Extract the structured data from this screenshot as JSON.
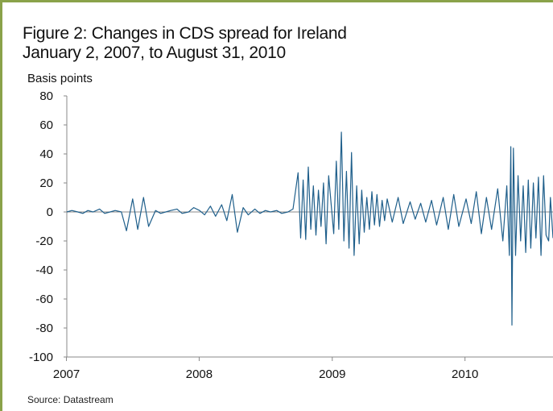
{
  "chart_data": {
    "type": "line",
    "title": "Figure 2: Changes in CDS spread for Ireland",
    "subtitle": "January 2, 2007, to August 31, 2010",
    "ylabel": "Basis points",
    "xlabel": "",
    "source": "Source: Datastream",
    "ylim": [
      -100,
      80
    ],
    "y_ticks": [
      "80",
      "60",
      "40",
      "20",
      "0",
      "-20",
      "-40",
      "-60",
      "-80",
      "-100"
    ],
    "x_ticks": [
      "2007",
      "2008",
      "2009",
      "2010"
    ],
    "x_range": [
      "2007-01-02",
      "2010-08-31"
    ],
    "grid": false,
    "legend": "none",
    "line_color": "#1f5f8b",
    "series": [
      {
        "x": [
          "2007-01-02",
          "2007-01-16",
          "2007-02-01",
          "2007-02-15",
          "2007-03-01",
          "2007-03-15",
          "2007-04-02",
          "2007-04-16",
          "2007-05-01",
          "2007-05-15",
          "2007-06-01",
          "2007-06-15",
          "2007-07-02",
          "2007-07-16",
          "2007-08-01",
          "2007-08-15",
          "2007-09-03",
          "2007-09-17",
          "2007-10-01",
          "2007-10-15",
          "2007-11-01",
          "2007-11-15",
          "2007-12-03",
          "2007-12-17",
          "2008-01-02",
          "2008-01-16",
          "2008-02-01",
          "2008-02-15",
          "2008-03-03",
          "2008-03-17",
          "2008-04-01",
          "2008-04-15",
          "2008-05-01",
          "2008-05-15",
          "2008-06-02",
          "2008-06-16",
          "2008-07-01",
          "2008-07-15",
          "2008-08-01",
          "2008-08-15",
          "2008-09-01",
          "2008-09-15",
          "2008-09-29",
          "2008-10-06",
          "2008-10-13",
          "2008-10-20",
          "2008-10-27",
          "2008-11-03",
          "2008-11-10",
          "2008-11-17",
          "2008-11-24",
          "2008-12-01",
          "2008-12-08",
          "2008-12-15",
          "2008-12-22",
          "2009-01-05",
          "2009-01-12",
          "2009-01-19",
          "2009-01-26",
          "2009-02-02",
          "2009-02-09",
          "2009-02-16",
          "2009-02-23",
          "2009-03-02",
          "2009-03-09",
          "2009-03-16",
          "2009-03-23",
          "2009-03-30",
          "2009-04-06",
          "2009-04-13",
          "2009-04-20",
          "2009-04-27",
          "2009-05-04",
          "2009-05-11",
          "2009-05-18",
          "2009-05-25",
          "2009-06-01",
          "2009-06-15",
          "2009-07-01",
          "2009-07-15",
          "2009-08-03",
          "2009-08-17",
          "2009-09-01",
          "2009-09-15",
          "2009-10-01",
          "2009-10-15",
          "2009-11-02",
          "2009-11-16",
          "2009-12-01",
          "2009-12-15",
          "2010-01-04",
          "2010-01-18",
          "2010-02-01",
          "2010-02-15",
          "2010-03-01",
          "2010-03-15",
          "2010-04-01",
          "2010-04-15",
          "2010-04-26",
          "2010-05-03",
          "2010-05-07",
          "2010-05-10",
          "2010-05-14",
          "2010-05-20",
          "2010-05-27",
          "2010-06-03",
          "2010-06-10",
          "2010-06-17",
          "2010-06-24",
          "2010-07-01",
          "2010-07-08",
          "2010-07-15",
          "2010-07-22",
          "2010-07-29",
          "2010-08-05",
          "2010-08-12",
          "2010-08-19",
          "2010-08-24",
          "2010-08-31"
        ],
        "y": [
          0,
          1,
          0,
          -1,
          1,
          0,
          2,
          -1,
          0,
          1,
          0,
          -13,
          9,
          -12,
          10,
          -10,
          1,
          -1,
          0,
          1,
          2,
          -1,
          0,
          3,
          1,
          -2,
          4,
          -3,
          5,
          -6,
          12,
          -14,
          3,
          -2,
          2,
          -1,
          1,
          0,
          1,
          -1,
          0,
          2,
          27,
          -18,
          22,
          -19,
          31,
          -12,
          18,
          -16,
          15,
          -10,
          20,
          -22,
          25,
          -15,
          35,
          -12,
          55,
          -20,
          28,
          -25,
          41,
          -30,
          18,
          -22,
          15,
          -14,
          10,
          -12,
          14,
          -9,
          12,
          -10,
          8,
          -6,
          9,
          -7,
          10,
          -8,
          7,
          -5,
          6,
          -7,
          8,
          -9,
          10,
          -12,
          12,
          -10,
          9,
          -8,
          14,
          -15,
          10,
          -12,
          16,
          -20,
          18,
          -30,
          45,
          -78,
          44,
          -30,
          25,
          -20,
          18,
          -28,
          22,
          -25,
          20,
          -18,
          24,
          -30,
          25,
          -16,
          -20,
          10,
          -18
        ]
      }
    ]
  }
}
